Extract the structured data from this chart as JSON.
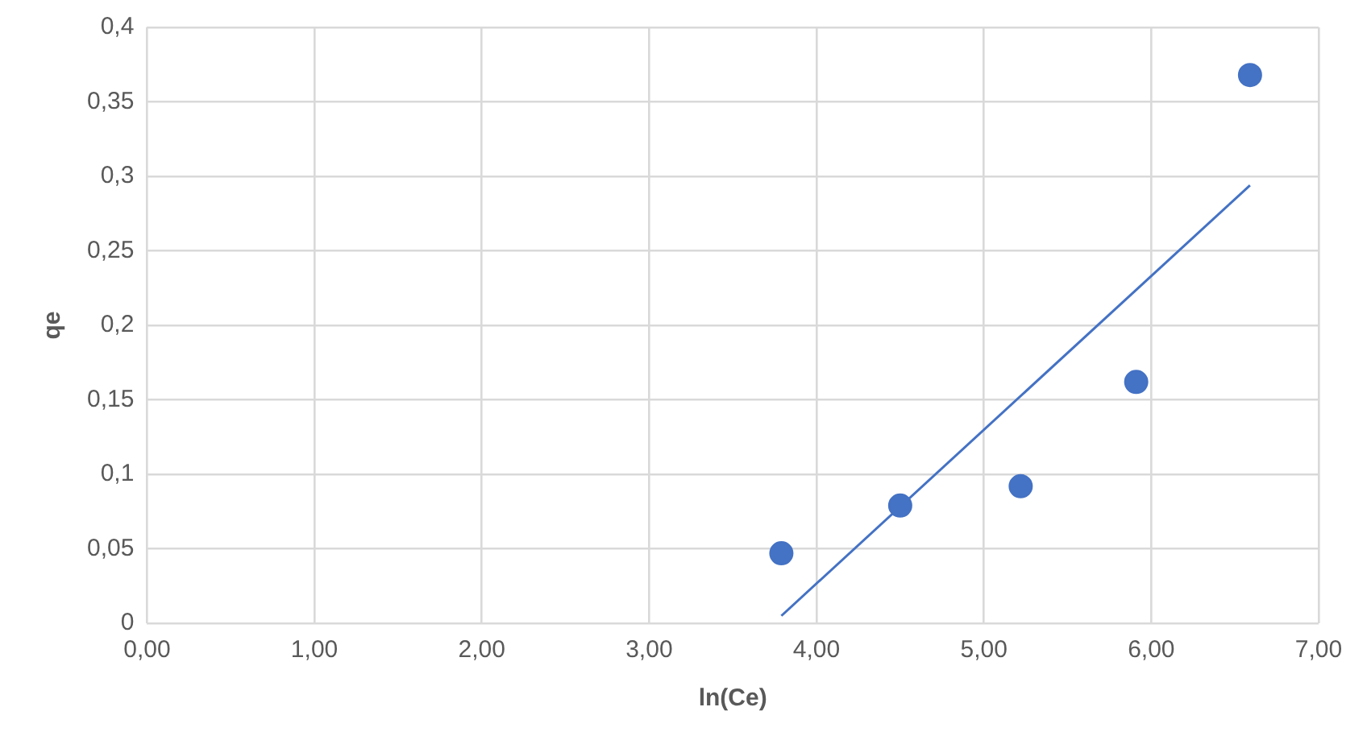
{
  "chart_data": {
    "type": "scatter",
    "xlabel": "ln(Ce)",
    "ylabel": "qe",
    "xlim": [
      0,
      7
    ],
    "xticks": [
      {
        "value": 0,
        "label": "0,00"
      },
      {
        "value": 1,
        "label": "1,00"
      },
      {
        "value": 2,
        "label": "2,00"
      },
      {
        "value": 3,
        "label": "3,00"
      },
      {
        "value": 4,
        "label": "4,00"
      },
      {
        "value": 5,
        "label": "5,00"
      },
      {
        "value": 6,
        "label": "6,00"
      },
      {
        "value": 7,
        "label": "7,00"
      }
    ],
    "ylim": [
      0,
      0.4
    ],
    "yticks": [
      0,
      {
        "value": 0.05,
        "label": "0,05"
      },
      {
        "value": 0.1,
        "label": "0,1"
      },
      {
        "value": 0.15,
        "label": "0,15"
      },
      {
        "value": 0.2,
        "label": "0,2"
      },
      {
        "value": 0.25,
        "label": "0,25"
      },
      {
        "value": 0.3,
        "label": "0,3"
      },
      {
        "value": 0.35,
        "label": "0,35"
      },
      {
        "value": 0.4,
        "label": "0,4"
      }
    ],
    "grid": true,
    "series": [
      {
        "type": "scatter",
        "marker": "circle",
        "color": "#4472c4",
        "x": [
          3.79,
          4.5,
          5.22,
          5.91,
          6.59
        ],
        "values": [
          0.047,
          0.079,
          0.092,
          0.162,
          0.368
        ]
      },
      {
        "type": "line",
        "marker": "none",
        "color": "#4472c4",
        "x": [
          3.79,
          6.59
        ],
        "values": [
          0.005,
          0.294
        ]
      }
    ]
  }
}
